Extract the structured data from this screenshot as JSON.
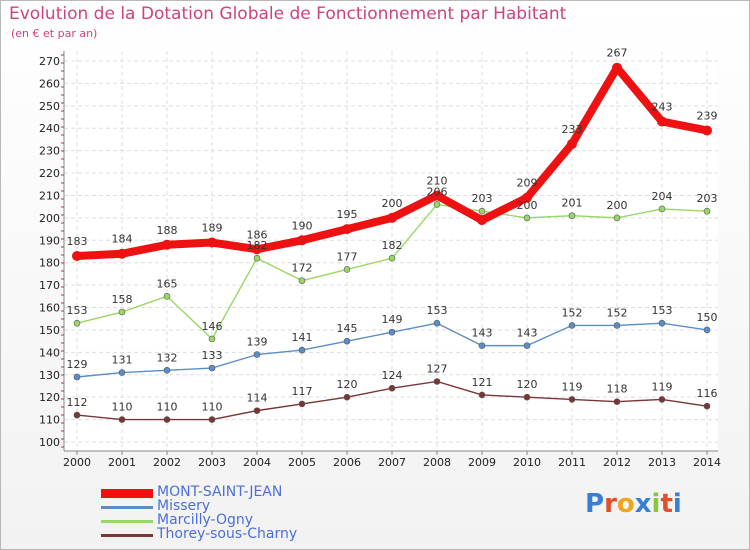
{
  "header": {
    "title": "Evolution de la Dotation Globale de Fonctionnement par Habitant",
    "subtitle": "(en € et par an)"
  },
  "logo": {
    "text": "Proxiti"
  },
  "chart_data": {
    "type": "line",
    "title": "Evolution de la Dotation Globale de Fonctionnement par Habitant",
    "subtitle": "(en € et par an)",
    "xlabel": "",
    "ylabel": "",
    "x": [
      "2000",
      "2001",
      "2002",
      "2003",
      "2004",
      "2005",
      "2006",
      "2007",
      "2008",
      "2009",
      "2010",
      "2011",
      "2012",
      "2013",
      "2014"
    ],
    "ylim": [
      100,
      270
    ],
    "yticks": [
      100,
      110,
      120,
      130,
      140,
      150,
      160,
      170,
      180,
      190,
      200,
      210,
      220,
      230,
      240,
      250,
      260,
      270
    ],
    "grid": true,
    "legend_position": "bottom-left",
    "series": [
      {
        "name": "MONT-SAINT-JEAN",
        "color": "#ee1111",
        "label_color": "#4b6fd6",
        "emphasis": true,
        "values": [
          183,
          184,
          188,
          189,
          186,
          190,
          195,
          200,
          210,
          199,
          209,
          233,
          267,
          243,
          239
        ],
        "labels": [
          "183",
          "184",
          "188",
          "189",
          "186",
          "190",
          "195",
          "200",
          "210",
          "",
          "209",
          "233",
          "267",
          "243",
          "239"
        ]
      },
      {
        "name": "Missery",
        "color": "#5b8ec8",
        "label_color": "#5b8ec8",
        "emphasis": false,
        "values": [
          129,
          131,
          132,
          133,
          139,
          141,
          145,
          149,
          153,
          143,
          143,
          152,
          152,
          153,
          150
        ],
        "labels": [
          "129",
          "131",
          "132",
          "133",
          "139",
          "141",
          "145",
          "149",
          "153",
          "143",
          "143",
          "152",
          "152",
          "153",
          "150"
        ]
      },
      {
        "name": "Marcilly-Ogny",
        "color": "#99d666",
        "label_color": "#6cb83a",
        "emphasis": false,
        "values": [
          153,
          158,
          165,
          146,
          182,
          172,
          177,
          182,
          206,
          203,
          200,
          201,
          200,
          204,
          203
        ],
        "labels": [
          "153",
          "158",
          "165",
          "146",
          "182",
          "172",
          "177",
          "182",
          "206",
          "203",
          "200",
          "201",
          "200",
          "204",
          "203"
        ]
      },
      {
        "name": "Thorey-sous-Charny",
        "color": "#7a3535",
        "label_color": "#7a3535",
        "emphasis": false,
        "values": [
          112,
          110,
          110,
          110,
          114,
          117,
          120,
          124,
          127,
          121,
          120,
          119,
          118,
          119,
          116
        ],
        "labels": [
          "112",
          "110",
          "110",
          "110",
          "114",
          "117",
          "120",
          "124",
          "127",
          "121",
          "120",
          "119",
          "118",
          "119",
          "116"
        ]
      }
    ]
  }
}
